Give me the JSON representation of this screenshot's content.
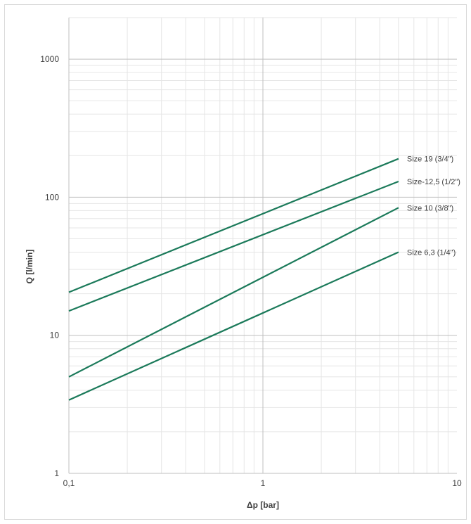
{
  "chart_data": {
    "type": "line",
    "xscale": "log",
    "yscale": "log",
    "xlim": [
      0.1,
      10
    ],
    "ylim": [
      1,
      2000
    ],
    "xticks": [
      0.1,
      1,
      10
    ],
    "xtick_labels": [
      "0,1",
      "1",
      "10"
    ],
    "yticks": [
      1,
      10,
      100,
      1000
    ],
    "ytick_labels": [
      "1",
      "10",
      "100",
      "1000"
    ],
    "xlabel": "Δp [bar]",
    "ylabel": "Q [l/min]",
    "grid": "major and minor",
    "line_color": "#1b7a5a",
    "series": [
      {
        "name": "Size 19 (3/4\")",
        "x": [
          0.1,
          5
        ],
        "y": [
          20.5,
          190
        ]
      },
      {
        "name": "Size-12,5 (1/2\")",
        "x": [
          0.1,
          5
        ],
        "y": [
          15,
          130
        ]
      },
      {
        "name": "Size 10 (3/8\")",
        "x": [
          0.1,
          5
        ],
        "y": [
          5,
          84
        ]
      },
      {
        "name": "Size 6,3 (1/4\")",
        "x": [
          0.1,
          5
        ],
        "y": [
          3.4,
          40
        ]
      }
    ]
  }
}
